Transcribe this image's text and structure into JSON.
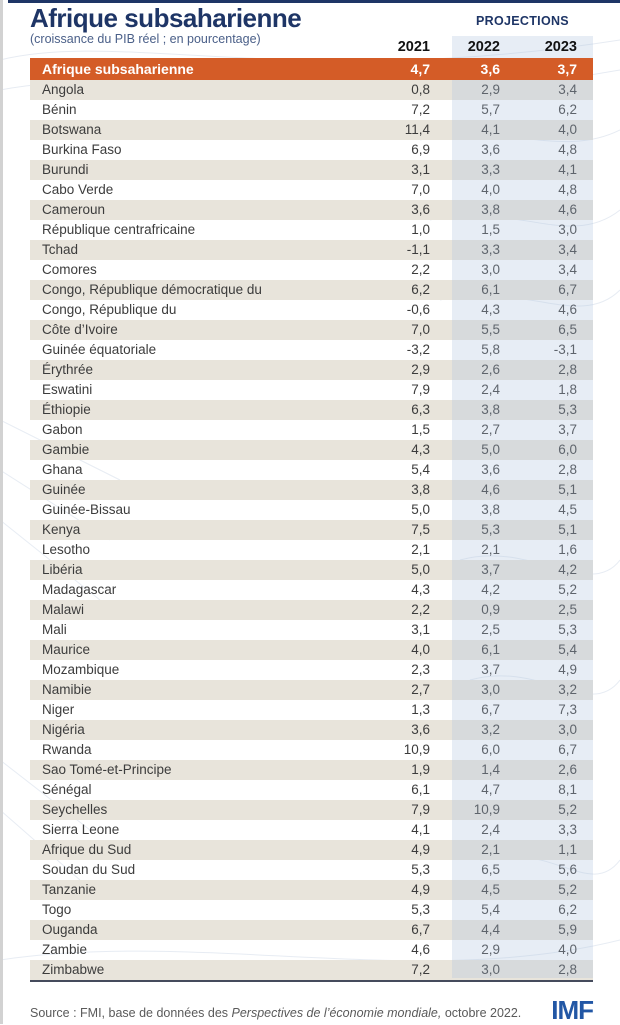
{
  "header": {
    "title": "Afrique subsaharienne",
    "subtitle": "(croissance du PIB réel ; en pourcentage)",
    "projections_label": "PROJECTIONS"
  },
  "table": {
    "year_columns": [
      "2021",
      "2022",
      "2023"
    ],
    "region_total": {
      "name": "Afrique subsaharienne",
      "values": [
        "4,7",
        "3,6",
        "3,7"
      ]
    },
    "rows": [
      {
        "name": "Angola",
        "values": [
          "0,8",
          "2,9",
          "3,4"
        ]
      },
      {
        "name": "Bénin",
        "values": [
          "7,2",
          "5,7",
          "6,2"
        ]
      },
      {
        "name": "Botswana",
        "values": [
          "11,4",
          "4,1",
          "4,0"
        ]
      },
      {
        "name": "Burkina Faso",
        "values": [
          "6,9",
          "3,6",
          "4,8"
        ]
      },
      {
        "name": "Burundi",
        "values": [
          "3,1",
          "3,3",
          "4,1"
        ]
      },
      {
        "name": "Cabo Verde",
        "values": [
          "7,0",
          "4,0",
          "4,8"
        ]
      },
      {
        "name": "Cameroun",
        "values": [
          "3,6",
          "3,8",
          "4,6"
        ]
      },
      {
        "name": "République centrafricaine",
        "values": [
          "1,0",
          "1,5",
          "3,0"
        ]
      },
      {
        "name": "Tchad",
        "values": [
          "-1,1",
          "3,3",
          "3,4"
        ]
      },
      {
        "name": "Comores",
        "values": [
          "2,2",
          "3,0",
          "3,4"
        ]
      },
      {
        "name": "Congo, République démocratique du",
        "values": [
          "6,2",
          "6,1",
          "6,7"
        ]
      },
      {
        "name": "Congo, République du",
        "values": [
          "-0,6",
          "4,3",
          "4,6"
        ]
      },
      {
        "name": "Côte d’Ivoire",
        "values": [
          "7,0",
          "5,5",
          "6,5"
        ]
      },
      {
        "name": "Guinée équatoriale",
        "values": [
          "-3,2",
          "5,8",
          "-3,1"
        ]
      },
      {
        "name": "Érythrée",
        "values": [
          "2,9",
          "2,6",
          "2,8"
        ]
      },
      {
        "name": "Eswatini",
        "values": [
          "7,9",
          "2,4",
          "1,8"
        ]
      },
      {
        "name": "Éthiopie",
        "values": [
          "6,3",
          "3,8",
          "5,3"
        ]
      },
      {
        "name": "Gabon",
        "values": [
          "1,5",
          "2,7",
          "3,7"
        ]
      },
      {
        "name": "Gambie",
        "values": [
          "4,3",
          "5,0",
          "6,0"
        ]
      },
      {
        "name": "Ghana",
        "values": [
          "5,4",
          "3,6",
          "2,8"
        ]
      },
      {
        "name": "Guinée",
        "values": [
          "3,8",
          "4,6",
          "5,1"
        ]
      },
      {
        "name": "Guinée-Bissau",
        "values": [
          "5,0",
          "3,8",
          "4,5"
        ]
      },
      {
        "name": "Kenya",
        "values": [
          "7,5",
          "5,3",
          "5,1"
        ]
      },
      {
        "name": "Lesotho",
        "values": [
          "2,1",
          "2,1",
          "1,6"
        ]
      },
      {
        "name": "Libéria",
        "values": [
          "5,0",
          "3,7",
          "4,2"
        ]
      },
      {
        "name": "Madagascar",
        "values": [
          "4,3",
          "4,2",
          "5,2"
        ]
      },
      {
        "name": "Malawi",
        "values": [
          "2,2",
          "0,9",
          "2,5"
        ]
      },
      {
        "name": "Mali",
        "values": [
          "3,1",
          "2,5",
          "5,3"
        ]
      },
      {
        "name": "Maurice",
        "values": [
          "4,0",
          "6,1",
          "5,4"
        ]
      },
      {
        "name": "Mozambique",
        "values": [
          "2,3",
          "3,7",
          "4,9"
        ]
      },
      {
        "name": "Namibie",
        "values": [
          "2,7",
          "3,0",
          "3,2"
        ]
      },
      {
        "name": "Niger",
        "values": [
          "1,3",
          "6,7",
          "7,3"
        ]
      },
      {
        "name": "Nigéria",
        "values": [
          "3,6",
          "3,2",
          "3,0"
        ]
      },
      {
        "name": "Rwanda",
        "values": [
          "10,9",
          "6,0",
          "6,7"
        ]
      },
      {
        "name": "Sao Tomé-et-Principe",
        "values": [
          "1,9",
          "1,4",
          "2,6"
        ]
      },
      {
        "name": "Sénégal",
        "values": [
          "6,1",
          "4,7",
          "8,1"
        ]
      },
      {
        "name": "Seychelles",
        "values": [
          "7,9",
          "10,9",
          "5,2"
        ]
      },
      {
        "name": "Sierra Leone",
        "values": [
          "4,1",
          "2,4",
          "3,3"
        ]
      },
      {
        "name": "Afrique du Sud",
        "values": [
          "4,9",
          "2,1",
          "1,1"
        ]
      },
      {
        "name": "Soudan du Sud",
        "values": [
          "5,3",
          "6,5",
          "5,6"
        ]
      },
      {
        "name": "Tanzanie",
        "values": [
          "4,9",
          "4,5",
          "5,2"
        ]
      },
      {
        "name": "Togo",
        "values": [
          "5,3",
          "5,4",
          "6,2"
        ]
      },
      {
        "name": "Ouganda",
        "values": [
          "6,7",
          "4,4",
          "5,9"
        ]
      },
      {
        "name": "Zambie",
        "values": [
          "4,6",
          "2,9",
          "4,0"
        ]
      },
      {
        "name": "Zimbabwe",
        "values": [
          "7,2",
          "3,0",
          "2,8"
        ]
      }
    ]
  },
  "footer": {
    "source_prefix": "Source : FMI, base de données des ",
    "source_italic": "Perspectives de l’économie mondiale,",
    "source_suffix": " octobre 2022.",
    "logo": "IMF"
  },
  "colors": {
    "accent_orange": "#d45c27",
    "navy": "#1e3566",
    "beige_stripe": "#e8e4db",
    "projection_band": "rgba(176,196,222,0.30)",
    "imf_blue": "#2257a5",
    "table_bottom_border": "#454b5c"
  },
  "chart_data": {
    "type": "table",
    "title": "Afrique subsaharienne",
    "subtitle": "(croissance du PIB réel ; en pourcentage)",
    "columns": [
      "2021",
      "2022",
      "2023"
    ],
    "projection_columns": [
      "2022",
      "2023"
    ],
    "rows": [
      [
        "Afrique subsaharienne",
        4.7,
        3.6,
        3.7
      ],
      [
        "Angola",
        0.8,
        2.9,
        3.4
      ],
      [
        "Bénin",
        7.2,
        5.7,
        6.2
      ],
      [
        "Botswana",
        11.4,
        4.1,
        4.0
      ],
      [
        "Burkina Faso",
        6.9,
        3.6,
        4.8
      ],
      [
        "Burundi",
        3.1,
        3.3,
        4.1
      ],
      [
        "Cabo Verde",
        7.0,
        4.0,
        4.8
      ],
      [
        "Cameroun",
        3.6,
        3.8,
        4.6
      ],
      [
        "République centrafricaine",
        1.0,
        1.5,
        3.0
      ],
      [
        "Tchad",
        -1.1,
        3.3,
        3.4
      ],
      [
        "Comores",
        2.2,
        3.0,
        3.4
      ],
      [
        "Congo, République démocratique du",
        6.2,
        6.1,
        6.7
      ],
      [
        "Congo, République du",
        -0.6,
        4.3,
        4.6
      ],
      [
        "Côte d’Ivoire",
        7.0,
        5.5,
        6.5
      ],
      [
        "Guinée équatoriale",
        -3.2,
        5.8,
        -3.1
      ],
      [
        "Érythrée",
        2.9,
        2.6,
        2.8
      ],
      [
        "Eswatini",
        7.9,
        2.4,
        1.8
      ],
      [
        "Éthiopie",
        6.3,
        3.8,
        5.3
      ],
      [
        "Gabon",
        1.5,
        2.7,
        3.7
      ],
      [
        "Gambie",
        4.3,
        5.0,
        6.0
      ],
      [
        "Ghana",
        5.4,
        3.6,
        2.8
      ],
      [
        "Guinée",
        3.8,
        4.6,
        5.1
      ],
      [
        "Guinée-Bissau",
        5.0,
        3.8,
        4.5
      ],
      [
        "Kenya",
        7.5,
        5.3,
        5.1
      ],
      [
        "Lesotho",
        2.1,
        2.1,
        1.6
      ],
      [
        "Libéria",
        5.0,
        3.7,
        4.2
      ],
      [
        "Madagascar",
        4.3,
        4.2,
        5.2
      ],
      [
        "Malawi",
        2.2,
        0.9,
        2.5
      ],
      [
        "Mali",
        3.1,
        2.5,
        5.3
      ],
      [
        "Maurice",
        4.0,
        6.1,
        5.4
      ],
      [
        "Mozambique",
        2.3,
        3.7,
        4.9
      ],
      [
        "Namibie",
        2.7,
        3.0,
        3.2
      ],
      [
        "Niger",
        1.3,
        6.7,
        7.3
      ],
      [
        "Nigéria",
        3.6,
        3.2,
        3.0
      ],
      [
        "Rwanda",
        10.9,
        6.0,
        6.7
      ],
      [
        "Sao Tomé-et-Principe",
        1.9,
        1.4,
        2.6
      ],
      [
        "Sénégal",
        6.1,
        4.7,
        8.1
      ],
      [
        "Seychelles",
        7.9,
        10.9,
        5.2
      ],
      [
        "Sierra Leone",
        4.1,
        2.4,
        3.3
      ],
      [
        "Afrique du Sud",
        4.9,
        2.1,
        1.1
      ],
      [
        "Soudan du Sud",
        5.3,
        6.5,
        5.6
      ],
      [
        "Tanzanie",
        4.9,
        4.5,
        5.2
      ],
      [
        "Togo",
        5.3,
        5.4,
        6.2
      ],
      [
        "Ouganda",
        6.7,
        4.4,
        5.9
      ],
      [
        "Zambie",
        4.6,
        2.9,
        4.0
      ],
      [
        "Zimbabwe",
        7.2,
        3.0,
        2.8
      ]
    ]
  }
}
